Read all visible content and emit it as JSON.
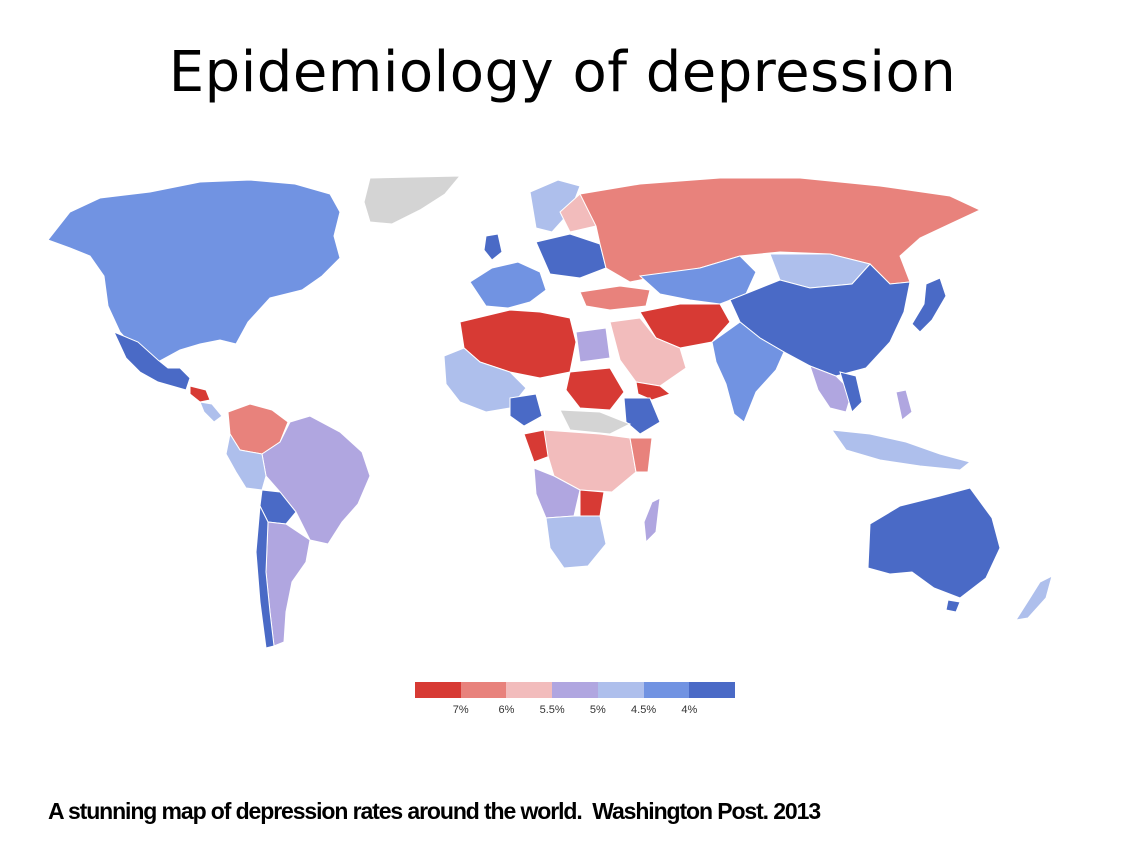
{
  "title": "Epidemiology of depression",
  "caption": "A stunning map of depression rates around the world.  Washington Post. 2013",
  "legend": {
    "colors": [
      "#d73a34",
      "#e8827c",
      "#f2bcbc",
      "#b0a6e0",
      "#aebfec",
      "#7193e2",
      "#4a6ac6"
    ],
    "labels": [
      "7%",
      "6%",
      "5.5%",
      "5%",
      "4.5%",
      "4%"
    ]
  },
  "colors": {
    "no_data": "#d4d4d4",
    "border": "#ffffff"
  }
}
